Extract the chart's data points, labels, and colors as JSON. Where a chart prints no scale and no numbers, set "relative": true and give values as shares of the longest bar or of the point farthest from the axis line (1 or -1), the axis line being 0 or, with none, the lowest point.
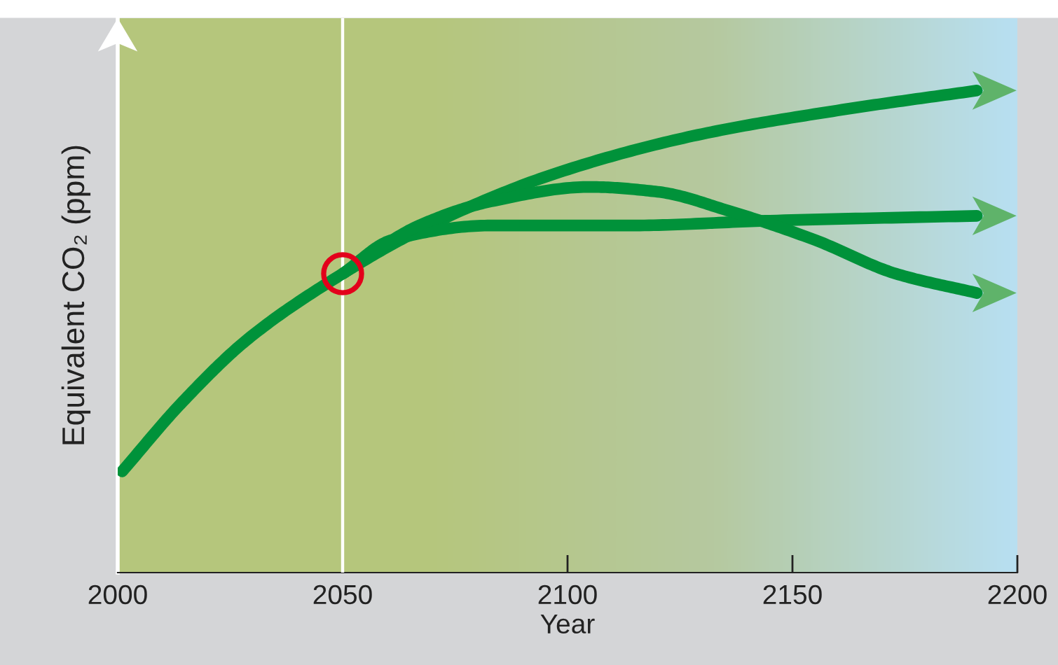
{
  "chart_data": {
    "type": "line",
    "relative": true,
    "xlabel": "Year",
    "ylabel": "Equivalent CO₂ (ppm)",
    "xlim": [
      2000,
      2200
    ],
    "xticks": [
      2000,
      2050,
      2100,
      2150,
      2200
    ],
    "grid": false,
    "legend": false,
    "marker": "none",
    "line_style": "solid",
    "series": [
      {
        "color": "#00923a",
        "x": [
          2001,
          2014,
          2029,
          2050,
          2067,
          2098,
          2130,
          2161,
          2191
        ],
        "values": [
          0.21,
          0.35,
          0.485,
          0.62,
          0.71,
          0.83,
          0.91,
          0.96,
          1.0
        ]
      },
      {
        "color": "#00923a",
        "x": [
          2050,
          2061,
          2083,
          2114,
          2145,
          2191
        ],
        "values": [
          0.62,
          0.69,
          0.72,
          0.72,
          0.73,
          0.74
        ]
      },
      {
        "color": "#00923a",
        "x": [
          2050,
          2067,
          2083,
          2105,
          2120,
          2136,
          2155,
          2173,
          2191
        ],
        "values": [
          0.62,
          0.72,
          0.77,
          0.8,
          0.79,
          0.75,
          0.69,
          0.62,
          0.58
        ]
      },
      {
        "type": "scatter",
        "marker": "circle",
        "color": "#e3001b",
        "x": [
          2050
        ],
        "values": [
          0.62
        ]
      }
    ],
    "ref_lines": [
      {
        "axis": "x",
        "value": 2050,
        "color": "#ffffff"
      }
    ]
  }
}
